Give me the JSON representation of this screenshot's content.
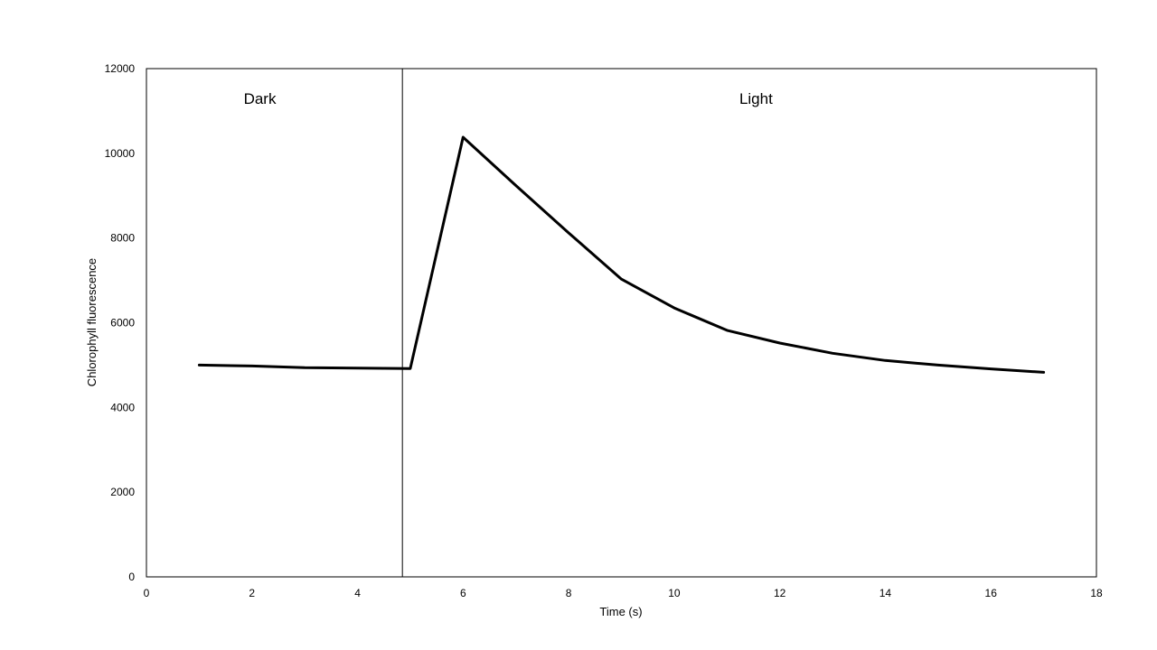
{
  "chart_data": {
    "type": "line",
    "title": "",
    "xlabel": "Time (s)",
    "ylabel": "Chlorophyll fluorescence",
    "xlim": [
      0,
      18
    ],
    "ylim": [
      0,
      12000
    ],
    "xticks": [
      0,
      2,
      4,
      6,
      8,
      10,
      12,
      14,
      16,
      18
    ],
    "yticks": [
      0,
      2000,
      4000,
      6000,
      8000,
      10000,
      12000
    ],
    "grid": false,
    "legend": "none",
    "line_color": "#000000",
    "series": [
      {
        "x": [
          1,
          2,
          3,
          4,
          5,
          6,
          7,
          8,
          9,
          10,
          11,
          12,
          13,
          14,
          15,
          16,
          17
        ],
        "values": [
          5000,
          4980,
          4940,
          4930,
          4920,
          10380,
          9240,
          8120,
          7030,
          6350,
          5820,
          5520,
          5280,
          5110,
          5000,
          4910,
          4830
        ]
      }
    ],
    "divider": {
      "x": 4.85
    },
    "annotations": [
      {
        "text": "Dark",
        "x": 2.15,
        "y": 11300
      },
      {
        "text": "Light",
        "x": 11.55,
        "y": 11300
      }
    ]
  }
}
